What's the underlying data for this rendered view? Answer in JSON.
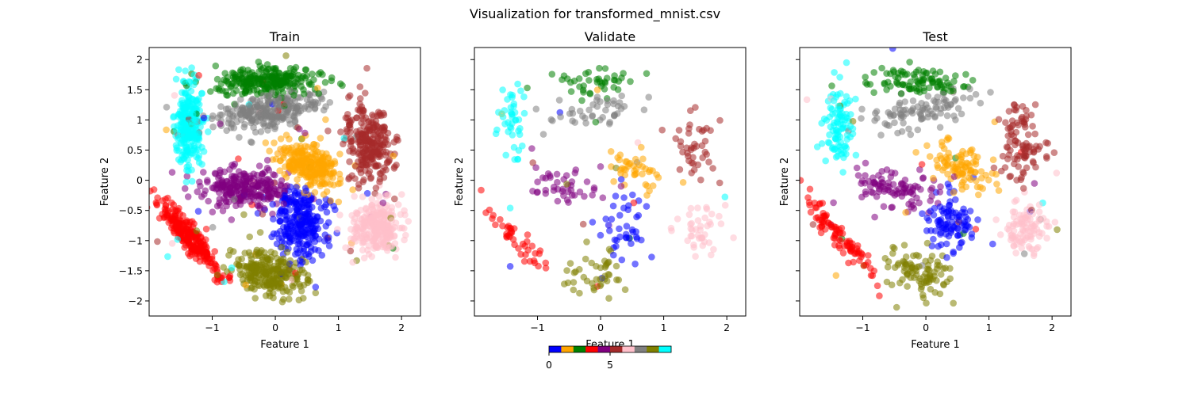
{
  "figure": {
    "suptitle": "Visualization for transformed_mnist.csv"
  },
  "chart_data": {
    "type": "scatter",
    "point_alpha": 0.55,
    "class_colors": [
      "#0000ff",
      "#ffa500",
      "#008000",
      "#ff0000",
      "#800080",
      "#a52a2a",
      "#ffc0cb",
      "#808080",
      "#808000",
      "#00ffff"
    ],
    "clusters": [
      {
        "label": 0,
        "color": "#0000ff",
        "center": [
          0.38,
          -0.72
        ],
        "spread": [
          0.2,
          0.3
        ],
        "rot": 0.0
      },
      {
        "label": 1,
        "color": "#ffa500",
        "center": [
          0.55,
          0.22
        ],
        "spread": [
          0.28,
          0.17
        ],
        "rot": -0.5
      },
      {
        "label": 2,
        "color": "#008000",
        "center": [
          -0.1,
          1.65
        ],
        "spread": [
          0.42,
          0.13
        ],
        "rot": 0.0
      },
      {
        "label": 3,
        "color": "#ff0000",
        "center": [
          -1.35,
          -0.95
        ],
        "spread": [
          0.08,
          0.4
        ],
        "rot": 0.7
      },
      {
        "label": 4,
        "color": "#800080",
        "center": [
          -0.5,
          -0.15
        ],
        "spread": [
          0.35,
          0.17
        ],
        "rot": 0.0
      },
      {
        "label": 5,
        "color": "#a52a2a",
        "center": [
          1.5,
          0.6
        ],
        "spread": [
          0.18,
          0.33
        ],
        "rot": 0.15
      },
      {
        "label": 6,
        "color": "#ffc0cb",
        "center": [
          1.6,
          -0.78
        ],
        "spread": [
          0.2,
          0.22
        ],
        "rot": 0.0
      },
      {
        "label": 7,
        "color": "#808080",
        "center": [
          -0.1,
          1.15
        ],
        "spread": [
          0.42,
          0.14
        ],
        "rot": 0.2
      },
      {
        "label": 8,
        "color": "#808000",
        "center": [
          -0.1,
          -1.55
        ],
        "spread": [
          0.28,
          0.18
        ],
        "rot": -0.35
      },
      {
        "label": 9,
        "color": "#00ffff",
        "center": [
          -1.38,
          0.95
        ],
        "spread": [
          0.11,
          0.35
        ],
        "rot": 0.0
      }
    ],
    "panels": [
      {
        "title": "Train",
        "points_per_class": 260,
        "xlabel": "Feature 1",
        "ylabel": "Feature 2",
        "xlim": [
          -2.0,
          2.3
        ],
        "ylim": [
          -2.25,
          2.2
        ],
        "xticks": [
          -1,
          0,
          1,
          2
        ],
        "yticks": [
          -2.0,
          -1.5,
          -1.0,
          -0.5,
          0.0,
          0.5,
          1.0,
          1.5,
          2.0
        ],
        "show_yticklabels": true
      },
      {
        "title": "Validate",
        "points_per_class": 42,
        "xlabel": "Feature 1",
        "ylabel": "Feature 2",
        "xlim": [
          -2.0,
          2.3
        ],
        "ylim": [
          -2.25,
          2.2
        ],
        "xticks": [
          -1,
          0,
          1,
          2
        ],
        "yticks": [
          -2.0,
          -1.5,
          -1.0,
          -0.5,
          0.0,
          0.5,
          1.0,
          1.5,
          2.0
        ],
        "show_yticklabels": false
      },
      {
        "title": "Test",
        "points_per_class": 95,
        "xlabel": "Feature 1",
        "ylabel": "Feature 2",
        "xlim": [
          -2.0,
          2.3
        ],
        "ylim": [
          -2.25,
          2.2
        ],
        "xticks": [
          -1,
          0,
          1,
          2
        ],
        "yticks": [
          -2.0,
          -1.5,
          -1.0,
          -0.5,
          0.0,
          0.5,
          1.0,
          1.5,
          2.0
        ],
        "show_yticklabels": false
      }
    ],
    "colorbar": {
      "orientation": "horizontal",
      "ticks": [
        0,
        5
      ],
      "range": [
        0,
        10
      ]
    },
    "grid": false,
    "legend": "none"
  }
}
